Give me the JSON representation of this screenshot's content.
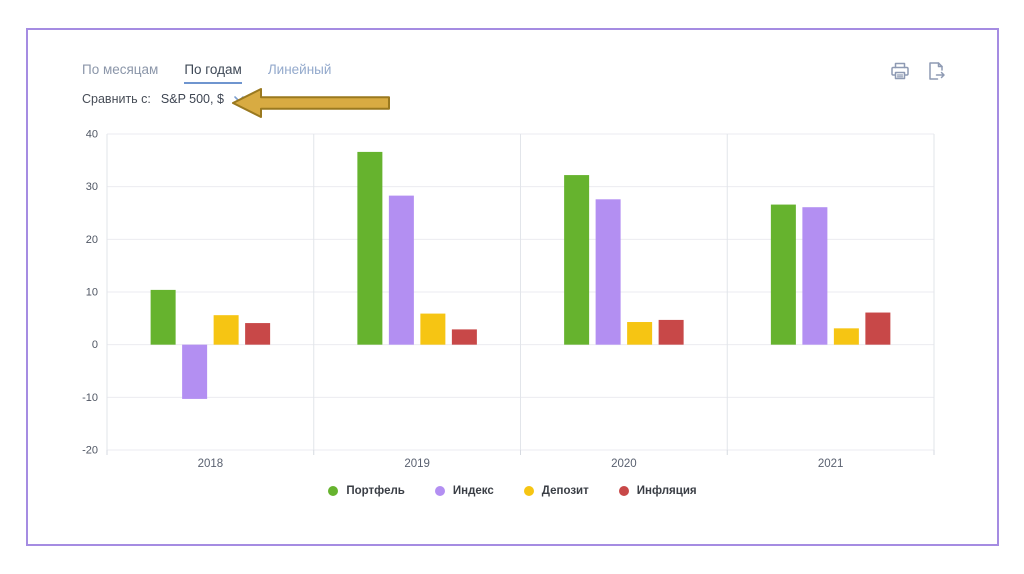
{
  "panel": {
    "border_color": "#a58ce2"
  },
  "tabs": [
    {
      "label": "По месяцам",
      "active": false
    },
    {
      "label": "По годам",
      "active": true
    },
    {
      "label": "Линейный",
      "active": false
    }
  ],
  "toolbar": {
    "print_icon": "print-icon",
    "export_icon": "export-icon"
  },
  "compare": {
    "label": "Сравнить с:",
    "selected": "S&P 500, $"
  },
  "annotation": {
    "arrow_fill": "#d8ab42",
    "arrow_stroke": "#9a791f"
  },
  "chart_data": {
    "type": "bar",
    "categories": [
      "2018",
      "2019",
      "2020",
      "2021"
    ],
    "series": [
      {
        "name": "Портфель",
        "color": "#66b32e",
        "values": [
          10.4,
          36.6,
          32.2,
          26.6
        ]
      },
      {
        "name": "Индекс",
        "color": "#b38ff2",
        "values": [
          -10.3,
          28.3,
          27.6,
          26.1
        ]
      },
      {
        "name": "Депозит",
        "color": "#f6c513",
        "values": [
          5.6,
          5.9,
          4.3,
          3.1
        ]
      },
      {
        "name": "Инфляция",
        "color": "#c84848",
        "values": [
          4.1,
          2.9,
          4.7,
          6.1
        ]
      }
    ],
    "ylim": [
      -20,
      40
    ],
    "yticks": [
      40,
      30,
      20,
      10,
      0,
      -10,
      -20
    ],
    "grid": true,
    "legend_position": "bottom",
    "xlabel": "",
    "ylabel": ""
  }
}
